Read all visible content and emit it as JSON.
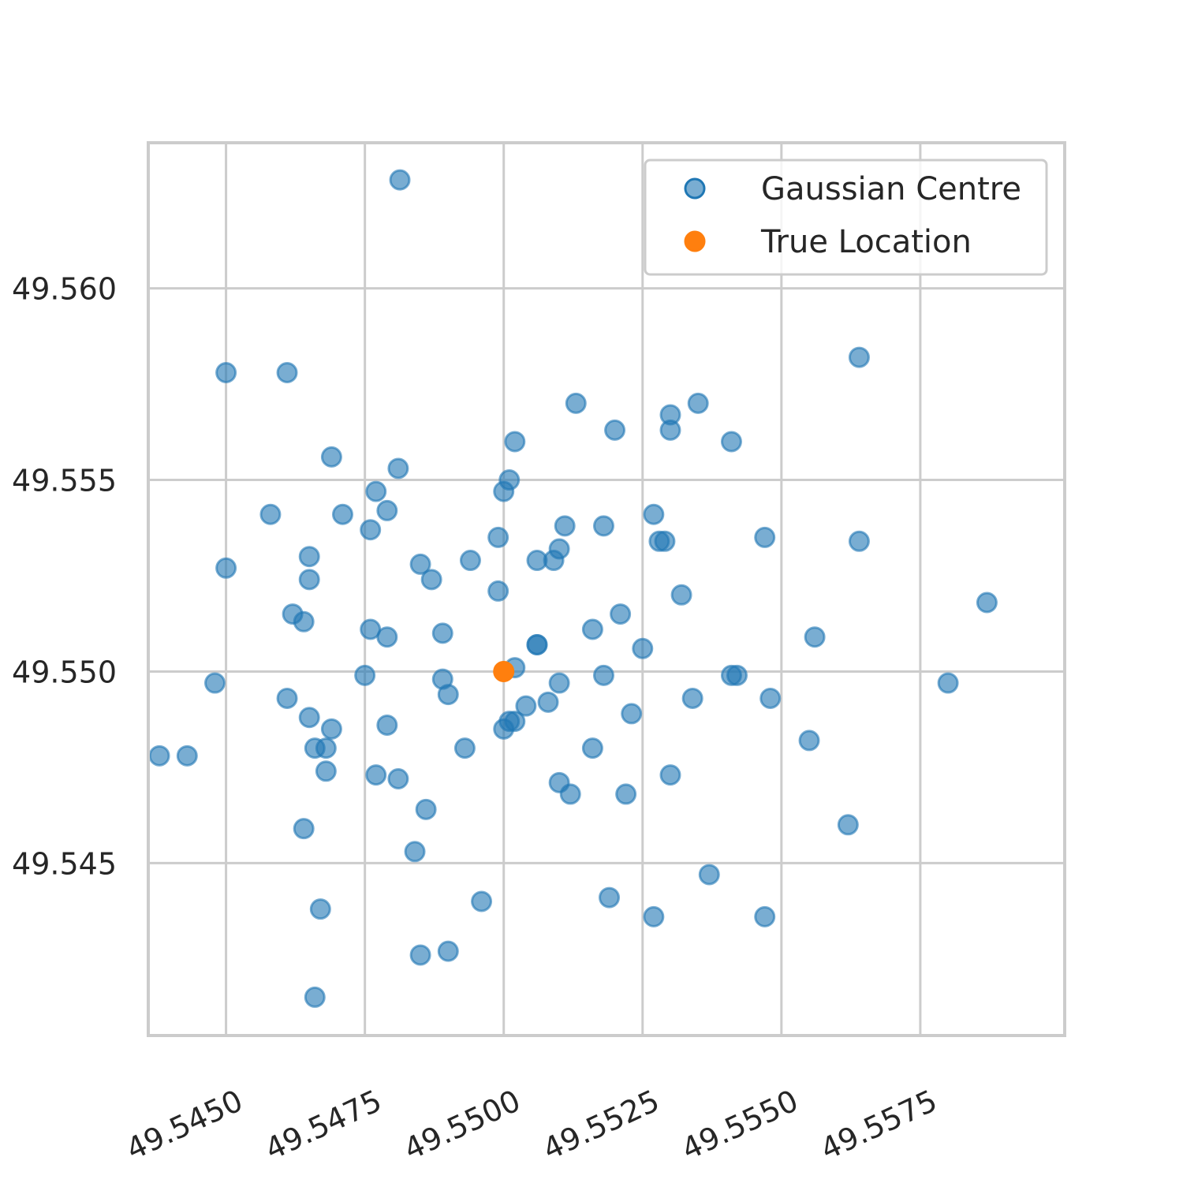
{
  "chart_data": {
    "type": "scatter",
    "title": "",
    "xlabel": "",
    "ylabel": "",
    "xlim": [
      49.5436,
      49.5601
    ],
    "ylim": [
      49.5405,
      49.5638
    ],
    "grid": true,
    "legend_position": "top-right",
    "x_ticks": [
      {
        "value": 49.545,
        "label": "49.5450"
      },
      {
        "value": 49.5475,
        "label": "49.5475"
      },
      {
        "value": 49.55,
        "label": "49.5500"
      },
      {
        "value": 49.5525,
        "label": "49.5525"
      },
      {
        "value": 49.555,
        "label": "49.5550"
      },
      {
        "value": 49.5575,
        "label": "49.5575"
      }
    ],
    "y_ticks": [
      {
        "value": 49.545,
        "label": "49.545"
      },
      {
        "value": 49.55,
        "label": "49.550"
      },
      {
        "value": 49.555,
        "label": "49.555"
      },
      {
        "value": 49.56,
        "label": "49.560"
      }
    ],
    "series": [
      {
        "name": "Gaussian Centre",
        "color": "#1f77b4",
        "opacity": 0.6,
        "points": [
          [
            49.54813,
            49.56283
          ],
          [
            49.545,
            49.5578
          ],
          [
            49.5461,
            49.5578
          ],
          [
            49.545,
            49.5527
          ],
          [
            49.5564,
            49.5582
          ],
          [
            49.5513,
            49.557
          ],
          [
            49.5535,
            49.557
          ],
          [
            49.553,
            49.5567
          ],
          [
            49.553,
            49.5563
          ],
          [
            49.552,
            49.5563
          ],
          [
            49.5541,
            49.556
          ],
          [
            49.5502,
            49.556
          ],
          [
            49.5469,
            49.5556
          ],
          [
            49.5481,
            49.5553
          ],
          [
            49.5501,
            49.555
          ],
          [
            49.55,
            49.5547
          ],
          [
            49.5477,
            49.5547
          ],
          [
            49.5479,
            49.5542
          ],
          [
            49.5458,
            49.5541
          ],
          [
            49.5471,
            49.5541
          ],
          [
            49.5476,
            49.5537
          ],
          [
            49.5511,
            49.5538
          ],
          [
            49.5518,
            49.5538
          ],
          [
            49.5527,
            49.5541
          ],
          [
            49.5528,
            49.5534
          ],
          [
            49.5529,
            49.5534
          ],
          [
            49.5547,
            49.5535
          ],
          [
            49.5564,
            49.5534
          ],
          [
            49.5499,
            49.5535
          ],
          [
            49.551,
            49.5532
          ],
          [
            49.5506,
            49.5529
          ],
          [
            49.5509,
            49.5529
          ],
          [
            49.5494,
            49.5529
          ],
          [
            49.5485,
            49.5528
          ],
          [
            49.5465,
            49.553
          ],
          [
            49.5465,
            49.5524
          ],
          [
            49.5487,
            49.5524
          ],
          [
            49.5499,
            49.5521
          ],
          [
            49.5532,
            49.552
          ],
          [
            49.5587,
            49.5518
          ],
          [
            49.5462,
            49.5515
          ],
          [
            49.5464,
            49.5513
          ],
          [
            49.5476,
            49.5511
          ],
          [
            49.5479,
            49.5509
          ],
          [
            49.5489,
            49.551
          ],
          [
            49.5516,
            49.5511
          ],
          [
            49.5521,
            49.5515
          ],
          [
            49.5556,
            49.5509
          ],
          [
            49.5506,
            49.5507
          ],
          [
            49.5506,
            49.5507
          ],
          [
            49.5525,
            49.5506
          ],
          [
            49.5502,
            49.5501
          ],
          [
            49.5475,
            49.5499
          ],
          [
            49.5489,
            49.5498
          ],
          [
            49.5448,
            49.5497
          ],
          [
            49.551,
            49.5497
          ],
          [
            49.5518,
            49.5499
          ],
          [
            49.5541,
            49.5499
          ],
          [
            49.5542,
            49.5499
          ],
          [
            49.558,
            49.5497
          ],
          [
            49.549,
            49.5494
          ],
          [
            49.5461,
            49.5493
          ],
          [
            49.5504,
            49.5491
          ],
          [
            49.5508,
            49.5492
          ],
          [
            49.5534,
            49.5493
          ],
          [
            49.5548,
            49.5493
          ],
          [
            49.5523,
            49.5489
          ],
          [
            49.5465,
            49.5488
          ],
          [
            49.5479,
            49.5486
          ],
          [
            49.5501,
            49.5487
          ],
          [
            49.5502,
            49.5487
          ],
          [
            49.55,
            49.5485
          ],
          [
            49.5469,
            49.5485
          ],
          [
            49.5493,
            49.548
          ],
          [
            49.5466,
            49.548
          ],
          [
            49.5468,
            49.548
          ],
          [
            49.5516,
            49.548
          ],
          [
            49.5555,
            49.5482
          ],
          [
            49.5438,
            49.5478
          ],
          [
            49.5443,
            49.5478
          ],
          [
            49.5468,
            49.5474
          ],
          [
            49.5477,
            49.5473
          ],
          [
            49.5481,
            49.5472
          ],
          [
            49.553,
            49.5473
          ],
          [
            49.551,
            49.5471
          ],
          [
            49.5512,
            49.5468
          ],
          [
            49.5522,
            49.5468
          ],
          [
            49.5486,
            49.5464
          ],
          [
            49.5464,
            49.5459
          ],
          [
            49.5562,
            49.546
          ],
          [
            49.5484,
            49.5453
          ],
          [
            49.5537,
            49.5447
          ],
          [
            49.5496,
            49.544
          ],
          [
            49.5519,
            49.5441
          ],
          [
            49.5467,
            49.5438
          ],
          [
            49.5527,
            49.5436
          ],
          [
            49.5547,
            49.5436
          ],
          [
            49.549,
            49.5427
          ],
          [
            49.5485,
            49.5426
          ],
          [
            49.5466,
            49.5415
          ]
        ]
      },
      {
        "name": "True Location",
        "color": "#ff7f0e",
        "opacity": 1.0,
        "points": [
          [
            49.55,
            49.55
          ]
        ]
      }
    ]
  }
}
